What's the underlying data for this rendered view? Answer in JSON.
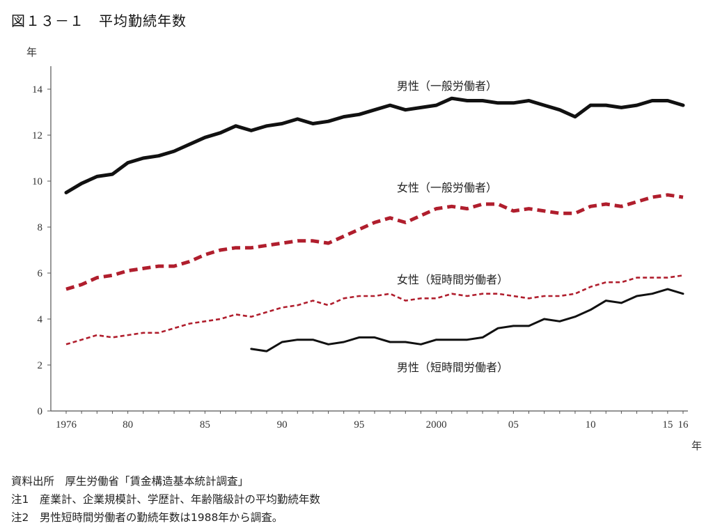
{
  "title": "図１３－１　平均勤続年数",
  "notes": [
    "資料出所　厚生労働省「賃金構造基本統計調査」",
    "注1　産業計、企業規模計、学歴計、年齢階級計の平均勤続年数",
    "注2　男性短時間労働者の勤続年数は1988年から調査。"
  ],
  "chart_data": {
    "type": "line",
    "ylabel": "年",
    "xlabel": "年",
    "ylim": [
      0,
      15
    ],
    "yticks": [
      0,
      2,
      4,
      6,
      8,
      10,
      12,
      14
    ],
    "xlim": [
      1976,
      2016
    ],
    "xtick_values": [
      1976,
      1980,
      1985,
      1990,
      1995,
      2000,
      2005,
      2010,
      2015,
      2016
    ],
    "xtick_labels": [
      "1976",
      "80",
      "85",
      "90",
      "95",
      "2000",
      "05",
      "10",
      "15",
      "16"
    ],
    "grid": false,
    "series": [
      {
        "name": "男性（一般労働者）",
        "color": "#111111",
        "style": "solid-thick",
        "x": [
          1976,
          1977,
          1978,
          1979,
          1980,
          1981,
          1982,
          1983,
          1984,
          1985,
          1986,
          1987,
          1988,
          1989,
          1990,
          1991,
          1992,
          1993,
          1994,
          1995,
          1996,
          1997,
          1998,
          1999,
          2000,
          2001,
          2002,
          2003,
          2004,
          2005,
          2006,
          2007,
          2008,
          2009,
          2010,
          2011,
          2012,
          2013,
          2014,
          2015,
          2016
        ],
        "values": [
          9.5,
          9.9,
          10.2,
          10.3,
          10.8,
          11.0,
          11.1,
          11.3,
          11.6,
          11.9,
          12.1,
          12.4,
          12.2,
          12.4,
          12.5,
          12.7,
          12.5,
          12.6,
          12.8,
          12.9,
          13.1,
          13.3,
          13.1,
          13.2,
          13.3,
          13.6,
          13.5,
          13.5,
          13.4,
          13.4,
          13.5,
          13.3,
          13.1,
          12.8,
          13.3,
          13.3,
          13.2,
          13.3,
          13.5,
          13.5,
          13.3
        ]
      },
      {
        "name": "女性（一般労働者）",
        "color": "#b01e2d",
        "style": "dashed-thick",
        "x": [
          1976,
          1977,
          1978,
          1979,
          1980,
          1981,
          1982,
          1983,
          1984,
          1985,
          1986,
          1987,
          1988,
          1989,
          1990,
          1991,
          1992,
          1993,
          1994,
          1995,
          1996,
          1997,
          1998,
          1999,
          2000,
          2001,
          2002,
          2003,
          2004,
          2005,
          2006,
          2007,
          2008,
          2009,
          2010,
          2011,
          2012,
          2013,
          2014,
          2015,
          2016
        ],
        "values": [
          5.3,
          5.5,
          5.8,
          5.9,
          6.1,
          6.2,
          6.3,
          6.3,
          6.5,
          6.8,
          7.0,
          7.1,
          7.1,
          7.2,
          7.3,
          7.4,
          7.4,
          7.3,
          7.6,
          7.9,
          8.2,
          8.4,
          8.2,
          8.5,
          8.8,
          8.9,
          8.8,
          9.0,
          9.0,
          8.7,
          8.8,
          8.7,
          8.6,
          8.6,
          8.9,
          9.0,
          8.9,
          9.1,
          9.3,
          9.4,
          9.3
        ]
      },
      {
        "name": "女性（短時間労働者）",
        "color": "#b01e2d",
        "style": "dashed-thin",
        "x": [
          1976,
          1977,
          1978,
          1979,
          1980,
          1981,
          1982,
          1983,
          1984,
          1985,
          1986,
          1987,
          1988,
          1989,
          1990,
          1991,
          1992,
          1993,
          1994,
          1995,
          1996,
          1997,
          1998,
          1999,
          2000,
          2001,
          2002,
          2003,
          2004,
          2005,
          2006,
          2007,
          2008,
          2009,
          2010,
          2011,
          2012,
          2013,
          2014,
          2015,
          2016
        ],
        "values": [
          2.9,
          3.1,
          3.3,
          3.2,
          3.3,
          3.4,
          3.4,
          3.6,
          3.8,
          3.9,
          4.0,
          4.2,
          4.1,
          4.3,
          4.5,
          4.6,
          4.8,
          4.6,
          4.9,
          5.0,
          5.0,
          5.1,
          4.8,
          4.9,
          4.9,
          5.1,
          5.0,
          5.1,
          5.1,
          5.0,
          4.9,
          5.0,
          5.0,
          5.1,
          5.4,
          5.6,
          5.6,
          5.8,
          5.8,
          5.8,
          5.9
        ]
      },
      {
        "name": "男性（短時間労働者）",
        "color": "#111111",
        "style": "solid-thin",
        "x": [
          1988,
          1989,
          1990,
          1991,
          1992,
          1993,
          1994,
          1995,
          1996,
          1997,
          1998,
          1999,
          2000,
          2001,
          2002,
          2003,
          2004,
          2005,
          2006,
          2007,
          2008,
          2009,
          2010,
          2011,
          2012,
          2013,
          2014,
          2015,
          2016
        ],
        "values": [
          2.7,
          2.6,
          3.0,
          3.1,
          3.1,
          2.9,
          3.0,
          3.2,
          3.2,
          3.0,
          3.0,
          2.9,
          3.1,
          3.1,
          3.1,
          3.2,
          3.6,
          3.7,
          3.7,
          4.0,
          3.9,
          4.1,
          4.4,
          4.8,
          4.7,
          5.0,
          5.1,
          5.3,
          5.1
        ]
      }
    ]
  }
}
